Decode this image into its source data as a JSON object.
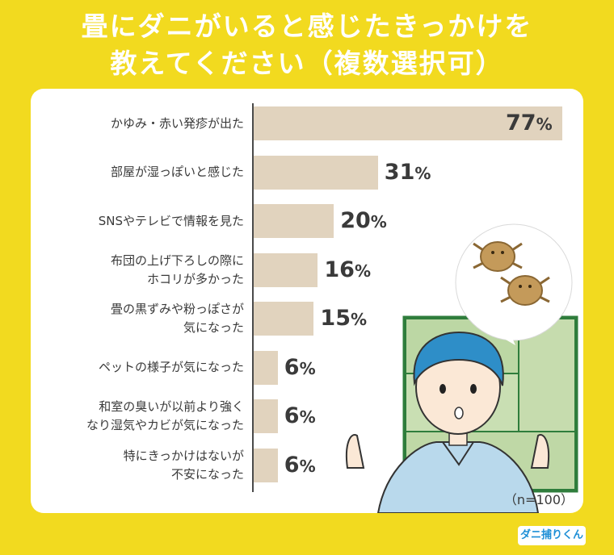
{
  "title_lines": [
    "畳にダニがいると感じたきっかけを",
    "教えてください（複数選択可）"
  ],
  "sample_note": "（n=100）",
  "brand": "ダニ捕りくん",
  "colors": {
    "background": "#f2da1f",
    "bar": "#e1d3be",
    "text": "#3a3a3a",
    "brand": "#1e8fd6"
  },
  "chart_data": {
    "type": "bar",
    "orientation": "horizontal",
    "categories": [
      [
        "かゆみ・赤い発疹が出た"
      ],
      [
        "部屋が湿っぽいと感じた"
      ],
      [
        "SNSやテレビで情報を見た"
      ],
      [
        "布団の上げ下ろしの際に",
        "ホコリが多かった"
      ],
      [
        "畳の黒ずみや粉っぽさが",
        "気になった"
      ],
      [
        "ペットの様子が気になった"
      ],
      [
        "和室の臭いが以前より強く",
        "なり湿気やカビが気になった"
      ],
      [
        "特にきっかけはないが",
        "不安になった"
      ]
    ],
    "values": [
      77,
      31,
      20,
      16,
      15,
      6,
      6,
      6
    ],
    "unit": "%",
    "xlim": [
      0,
      77
    ]
  }
}
